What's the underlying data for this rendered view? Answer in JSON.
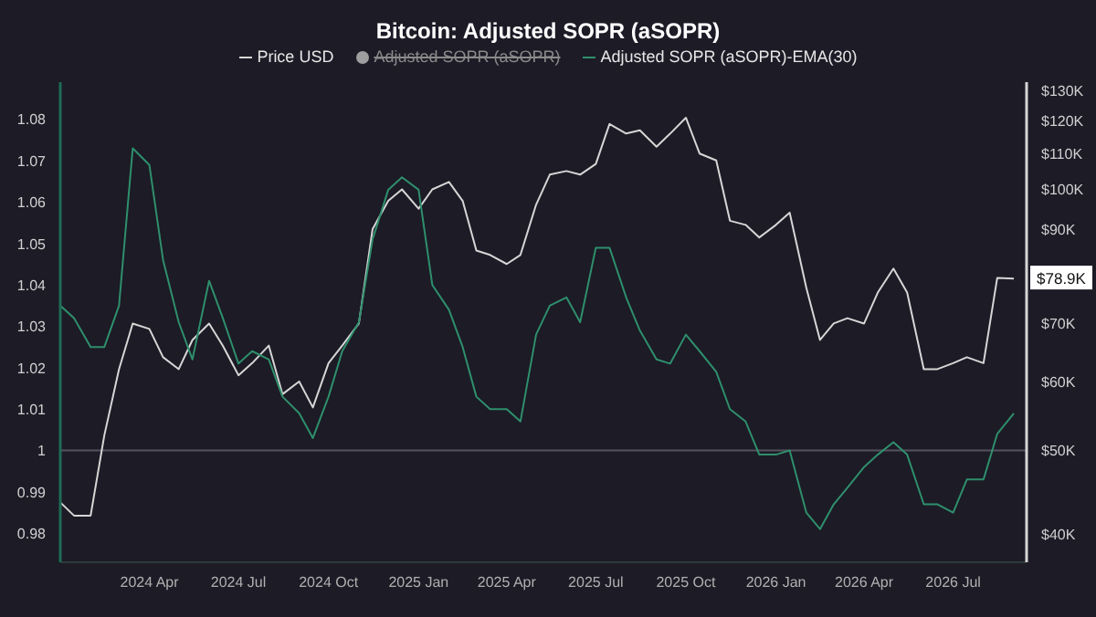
{
  "chart_data": {
    "type": "line",
    "title": "Bitcoin: Adjusted SOPR (aSOPR)",
    "x": [
      "2024-01-01",
      "2024-01-15",
      "2024-02-01",
      "2024-02-15",
      "2024-03-01",
      "2024-03-15",
      "2024-04-01",
      "2024-04-15",
      "2024-05-01",
      "2024-05-15",
      "2024-06-01",
      "2024-06-15",
      "2024-07-01",
      "2024-07-15",
      "2024-08-01",
      "2024-08-15",
      "2024-09-01",
      "2024-09-15",
      "2024-10-01",
      "2024-10-15",
      "2024-11-01",
      "2024-11-15",
      "2024-12-01",
      "2024-12-15",
      "2025-01-01",
      "2025-01-15",
      "2025-02-01",
      "2025-02-15",
      "2025-03-01",
      "2025-03-15",
      "2025-04-01",
      "2025-04-15",
      "2025-05-01",
      "2025-05-15",
      "2025-06-01",
      "2025-06-15",
      "2025-07-01",
      "2025-07-15",
      "2025-08-01",
      "2025-08-15",
      "2025-09-01",
      "2025-09-15",
      "2025-10-01",
      "2025-10-15",
      "2025-11-01",
      "2025-11-15",
      "2025-12-01",
      "2025-12-15",
      "2026-01-01",
      "2026-01-15",
      "2026-02-01",
      "2026-02-15",
      "2026-03-01",
      "2026-03-15",
      "2026-04-01",
      "2026-04-15",
      "2026-05-01",
      "2026-05-15",
      "2026-06-01",
      "2026-06-15",
      "2026-07-01",
      "2026-07-15",
      "2026-08-01",
      "2026-08-15",
      "2026-09-01"
    ],
    "series": [
      {
        "name": "Price USD",
        "color": "#d6d6d6",
        "axis": "y2",
        "values": [
          43500,
          42000,
          42000,
          52000,
          62000,
          70000,
          69000,
          64000,
          62000,
          67000,
          70000,
          66000,
          61000,
          63000,
          66000,
          58000,
          60000,
          56000,
          63000,
          66000,
          70000,
          90000,
          97000,
          100000,
          95000,
          100000,
          102000,
          97000,
          85000,
          84000,
          82000,
          84000,
          96000,
          104000,
          105000,
          104000,
          107000,
          119000,
          116000,
          117000,
          112000,
          116000,
          121000,
          110000,
          108000,
          92000,
          91000,
          88000,
          91000,
          94000,
          77000,
          67000,
          70000,
          71000,
          70000,
          76000,
          81000,
          76000,
          62000,
          62000,
          63000,
          64000,
          63000,
          79000,
          78900
        ]
      },
      {
        "name": "Adjusted SOPR (aSOPR)",
        "color": "#9e9e9e",
        "values": [
          null,
          null,
          null,
          null,
          null,
          null,
          null,
          null,
          null,
          null,
          null,
          null,
          null,
          null,
          null,
          null,
          null,
          null,
          null,
          null,
          null,
          null,
          null,
          null,
          null,
          null,
          null,
          null,
          null,
          null,
          null,
          null,
          null,
          null,
          null,
          null,
          null,
          null,
          null,
          null,
          null,
          null,
          null,
          null,
          null,
          null,
          null,
          null,
          null,
          null,
          null,
          null,
          null,
          null,
          null,
          null,
          null,
          null,
          null,
          null,
          null,
          null,
          null,
          null,
          null
        ]
      },
      {
        "name": "Adjusted SOPR (aSOPR)-EMA(30)",
        "color": "#2f8f6c",
        "values": [
          1.035,
          1.032,
          1.025,
          1.025,
          1.035,
          1.073,
          1.069,
          1.046,
          1.031,
          1.022,
          1.041,
          1.032,
          1.021,
          1.024,
          1.022,
          1.013,
          1.009,
          1.003,
          1.013,
          1.024,
          1.031,
          1.051,
          1.063,
          1.066,
          1.063,
          1.04,
          1.034,
          1.025,
          1.013,
          1.01,
          1.01,
          1.007,
          1.028,
          1.035,
          1.037,
          1.031,
          1.049,
          1.049,
          1.037,
          1.029,
          1.022,
          1.021,
          1.028,
          1.024,
          1.019,
          1.01,
          1.007,
          0.999,
          0.999,
          1.0,
          0.985,
          0.981,
          0.987,
          0.991,
          0.996,
          0.999,
          1.002,
          0.999,
          0.987,
          0.987,
          0.985,
          0.993,
          0.993,
          1.004,
          1.009
        ]
      }
    ],
    "xlim": [
      "2024-01-01",
      "2026-09-14"
    ],
    "xticks": [
      {
        "value": "2024-04-01",
        "label": "2024 Apr"
      },
      {
        "value": "2024-07-01",
        "label": "2024 Jul"
      },
      {
        "value": "2024-10-01",
        "label": "2024 Oct"
      },
      {
        "value": "2025-01-01",
        "label": "2025 Jan"
      },
      {
        "value": "2025-04-01",
        "label": "2025 Apr"
      },
      {
        "value": "2025-07-01",
        "label": "2025 Jul"
      },
      {
        "value": "2025-10-01",
        "label": "2025 Oct"
      },
      {
        "value": "2026-01-01",
        "label": "2026 Jan"
      },
      {
        "value": "2026-04-01",
        "label": "2026 Apr"
      },
      {
        "value": "2026-07-01",
        "label": "2026 Jul"
      }
    ],
    "ylim": [
      0.973,
      1.089
    ],
    "yticks": [
      0.98,
      0.99,
      1,
      1.01,
      1.02,
      1.03,
      1.04,
      1.05,
      1.06,
      1.07,
      1.08
    ],
    "y2lim": [
      37100,
      133000
    ],
    "y2ticks": [
      {
        "value": 40000,
        "label": "$40K"
      },
      {
        "value": 50000,
        "label": "$50K"
      },
      {
        "value": 60000,
        "label": "$60K"
      },
      {
        "value": 70000,
        "label": "$70K"
      },
      {
        "value": 90000,
        "label": "$90K"
      },
      {
        "value": 100000,
        "label": "$100K"
      },
      {
        "value": 110000,
        "label": "$110K"
      },
      {
        "value": 120000,
        "label": "$120K"
      },
      {
        "value": 130000,
        "label": "$130K"
      }
    ],
    "log": "y2",
    "ref_lines": [
      {
        "axis": "y",
        "value": 1,
        "color": "#55535e"
      }
    ],
    "annotations": [
      "$78.9K"
    ],
    "legend": "top",
    "marker": "none",
    "line_style": "solid"
  }
}
